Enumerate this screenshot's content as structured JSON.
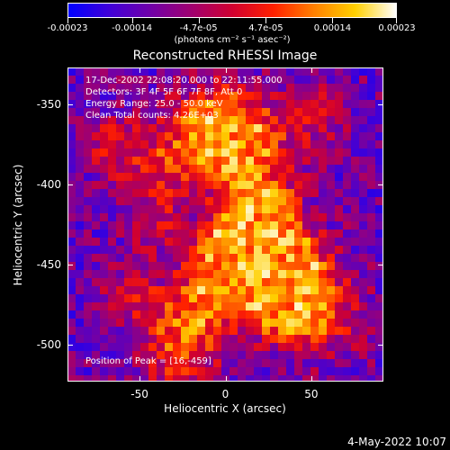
{
  "colorbar": {
    "tick_labels": [
      "-0.00023",
      "-0.00014",
      "-4.7e-05",
      "4.7e-05",
      "0.00014",
      "0.00023"
    ],
    "tick_values": [
      -0.00023,
      -0.00014,
      -4.7e-05,
      4.7e-05,
      0.00014,
      0.00023
    ],
    "units": "(photons cm⁻² s⁻¹ asec⁻²)",
    "range": [
      -0.00023,
      0.00023
    ],
    "colors": [
      "#0000ff",
      "#4000d8",
      "#7000a8",
      "#a00070",
      "#d00030",
      "#ff2000",
      "#ff8000",
      "#ffd000",
      "#ffffff"
    ]
  },
  "chart_data": {
    "type": "heatmap",
    "title": "Reconstructed RHESSI Image",
    "xlabel": "Heliocentric X (arcsec)",
    "ylabel": "Heliocentric Y (arcsec)",
    "xlim": [
      -92,
      92
    ],
    "ylim": [
      -523,
      -327
    ],
    "xticks": [
      "-50",
      "0",
      "50"
    ],
    "yticks": [
      "-350",
      "-400",
      "-450",
      "-500"
    ],
    "peak_position": [
      16,
      -459
    ],
    "annotations": [
      "17-Dec-2002 22:08:20.000 to 22:11:55.000",
      "Detectors: 3F 4F 5F 6F 7F 8F, Att 0",
      "Energy Range: 25.0 - 50.0 keV",
      "Clean     Total counts: 4.26E+03",
      "Position of Peak = [16,-459]"
    ]
  },
  "footer": {
    "date": "4-May-2022 10:07"
  }
}
